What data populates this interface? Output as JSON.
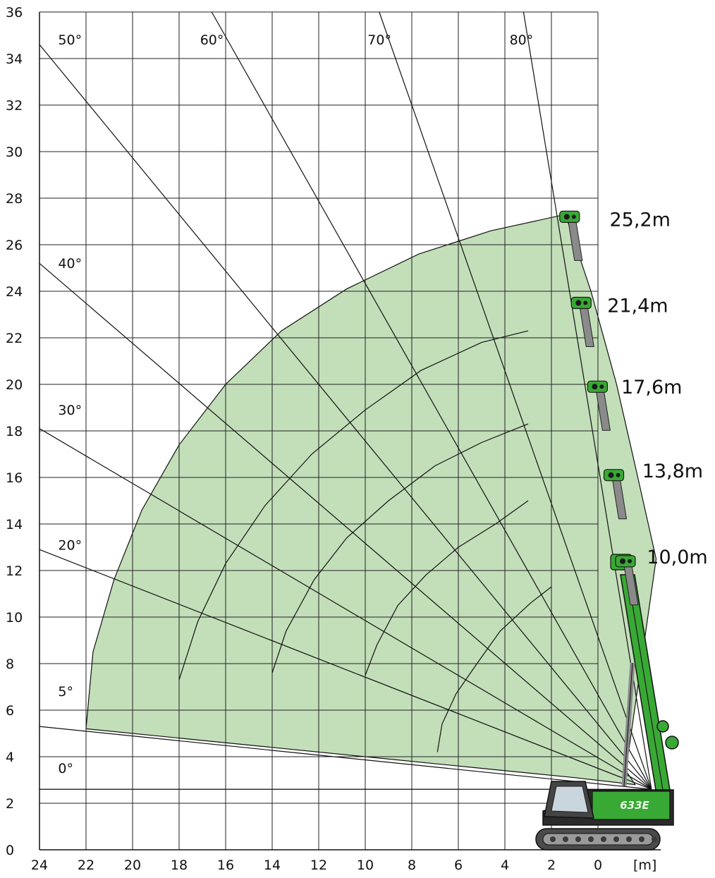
{
  "chart_data": {
    "type": "area",
    "title": "",
    "x_unit_label": "[m]",
    "x_ticks": [
      24,
      22,
      20,
      18,
      16,
      14,
      12,
      10,
      8,
      6,
      4,
      2,
      0
    ],
    "y_ticks": [
      0,
      2,
      4,
      6,
      8,
      10,
      12,
      14,
      16,
      18,
      20,
      22,
      24,
      26,
      28,
      30,
      32,
      34,
      36
    ],
    "x_range": [
      24,
      -2.7
    ],
    "y_range": [
      0,
      36
    ],
    "grid": true,
    "pivot": [
      -2.3,
      2.6
    ],
    "angle_lines": [
      {
        "label": "0°",
        "label_pos": [
          23.2,
          3.3
        ],
        "end": [
          24,
          2.6
        ]
      },
      {
        "label": "5°",
        "label_pos": [
          23.2,
          6.6
        ],
        "end": [
          24,
          5.3
        ]
      },
      {
        "label": "20°",
        "label_pos": [
          23.2,
          12.9
        ],
        "end": [
          24,
          12.9
        ]
      },
      {
        "label": "30°",
        "label_pos": [
          23.2,
          18.7
        ],
        "end": [
          24,
          18.1
        ]
      },
      {
        "label": "40°",
        "label_pos": [
          23.2,
          25.0
        ],
        "end": [
          24,
          25.2
        ]
      },
      {
        "label": "50°",
        "label_pos": [
          23.2,
          34.6
        ],
        "end": [
          24,
          34.6
        ]
      },
      {
        "label": "60°",
        "label_pos": [
          17.1,
          34.6
        ],
        "end": [
          16.6,
          36
        ]
      },
      {
        "label": "70°",
        "label_pos": [
          9.9,
          34.6
        ],
        "end": [
          9.4,
          36
        ]
      },
      {
        "label": "80°",
        "label_pos": [
          3.8,
          34.6
        ],
        "end": [
          3.2,
          36
        ]
      }
    ],
    "working_envelope": {
      "color": "#c3dfb9",
      "outline": [
        [
          22.0,
          5.2
        ],
        [
          21.7,
          8.5
        ],
        [
          20.8,
          11.6
        ],
        [
          19.6,
          14.6
        ],
        [
          18.0,
          17.4
        ],
        [
          16.0,
          20.0
        ],
        [
          13.6,
          22.3
        ],
        [
          10.8,
          24.1
        ],
        [
          7.7,
          25.6
        ],
        [
          4.6,
          26.6
        ],
        [
          1.4,
          27.3
        ],
        [
          0.3,
          24.0
        ],
        [
          -0.8,
          20.0
        ],
        [
          -1.6,
          16.5
        ],
        [
          -2.5,
          12.5
        ],
        [
          -1.2,
          3.4
        ],
        [
          -1.6,
          2.8
        ],
        [
          1.0,
          3.1
        ],
        [
          5.0,
          3.5
        ],
        [
          10.0,
          4.0
        ],
        [
          15.0,
          4.5
        ],
        [
          22.0,
          5.2
        ]
      ]
    },
    "radius_arcs": [
      {
        "points": [
          [
            6.9,
            4.2
          ],
          [
            6.7,
            5.4
          ],
          [
            6.1,
            6.7
          ],
          [
            5.2,
            8.0
          ],
          [
            4.2,
            9.4
          ],
          [
            2.9,
            10.6
          ],
          [
            2.0,
            11.3
          ]
        ]
      },
      {
        "points": [
          [
            10.0,
            7.5
          ],
          [
            9.5,
            8.8
          ],
          [
            8.6,
            10.5
          ],
          [
            7.4,
            11.8
          ],
          [
            6.0,
            13.0
          ],
          [
            4.4,
            14.0
          ],
          [
            3.0,
            15.0
          ]
        ]
      },
      {
        "points": [
          [
            14.0,
            7.6
          ],
          [
            13.4,
            9.4
          ],
          [
            12.2,
            11.6
          ],
          [
            10.8,
            13.4
          ],
          [
            9.0,
            15.0
          ],
          [
            7.0,
            16.5
          ],
          [
            5.0,
            17.5
          ],
          [
            3.0,
            18.3
          ]
        ]
      },
      {
        "points": [
          [
            18.0,
            7.3
          ],
          [
            17.2,
            9.8
          ],
          [
            16.0,
            12.3
          ],
          [
            14.3,
            14.8
          ],
          [
            12.3,
            17.0
          ],
          [
            10.0,
            18.9
          ],
          [
            7.6,
            20.6
          ],
          [
            5.0,
            21.8
          ],
          [
            3.0,
            22.3
          ]
        ]
      }
    ],
    "boom_lengths": [
      {
        "label": "25,2m",
        "label_pos": [
          -0.5,
          26.8
        ],
        "tip": [
          1.4,
          27.2
        ]
      },
      {
        "label": "21,4m",
        "label_pos": [
          -0.4,
          23.1
        ],
        "tip": [
          0.9,
          23.5
        ]
      },
      {
        "label": "17,6m",
        "label_pos": [
          -1.0,
          19.6
        ],
        "tip": [
          0.2,
          19.9
        ]
      },
      {
        "label": "13,8m",
        "label_pos": [
          -1.9,
          16.0
        ],
        "tip": [
          -0.5,
          16.1
        ]
      },
      {
        "label": "10,0m",
        "label_pos": [
          -2.1,
          12.3
        ],
        "tip": [
          -1.0,
          12.4
        ]
      }
    ],
    "machine_model": "633E",
    "colors": {
      "envelope": "#c3dfb9",
      "machine_green": "#39a935",
      "machine_dark": "#2b2b2b",
      "grid": "#222222"
    }
  }
}
